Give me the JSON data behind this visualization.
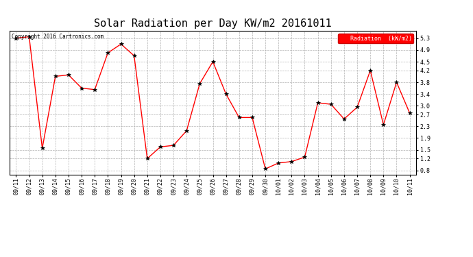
{
  "title": "Solar Radiation per Day KW/m2 20161011",
  "copyright": "Copyright 2016 Cartronics.com",
  "legend_label": "Radiation  (kW/m2)",
  "x_labels": [
    "09/11",
    "09/12",
    "09/13",
    "09/14",
    "09/15",
    "09/16",
    "09/17",
    "09/18",
    "09/19",
    "09/20",
    "09/21",
    "09/22",
    "09/23",
    "09/24",
    "09/25",
    "09/26",
    "09/27",
    "09/28",
    "09/29",
    "09/30",
    "10/01",
    "10/02",
    "10/03",
    "10/04",
    "10/05",
    "10/06",
    "10/07",
    "10/08",
    "10/09",
    "10/10",
    "10/11"
  ],
  "y_values": [
    5.3,
    5.35,
    1.55,
    4.0,
    4.05,
    3.6,
    3.55,
    4.8,
    5.1,
    4.7,
    1.2,
    1.6,
    1.65,
    2.15,
    3.75,
    4.5,
    3.4,
    2.6,
    2.6,
    0.85,
    1.05,
    1.1,
    1.25,
    3.1,
    3.05,
    2.55,
    2.95,
    4.2,
    2.35,
    3.8,
    2.75
  ],
  "line_color": "#ff0000",
  "marker_color": "#000000",
  "bg_color": "#ffffff",
  "grid_color": "#aaaaaa",
  "ylim_min": 0.65,
  "ylim_max": 5.55,
  "yticks": [
    0.8,
    1.2,
    1.5,
    1.9,
    2.3,
    2.7,
    3.0,
    3.4,
    3.8,
    4.2,
    4.5,
    4.9,
    5.3
  ],
  "legend_bg": "#ff0000",
  "legend_text_color": "#ffffff",
  "title_fontsize": 11,
  "tick_fontsize": 6,
  "border_color": "#000000"
}
